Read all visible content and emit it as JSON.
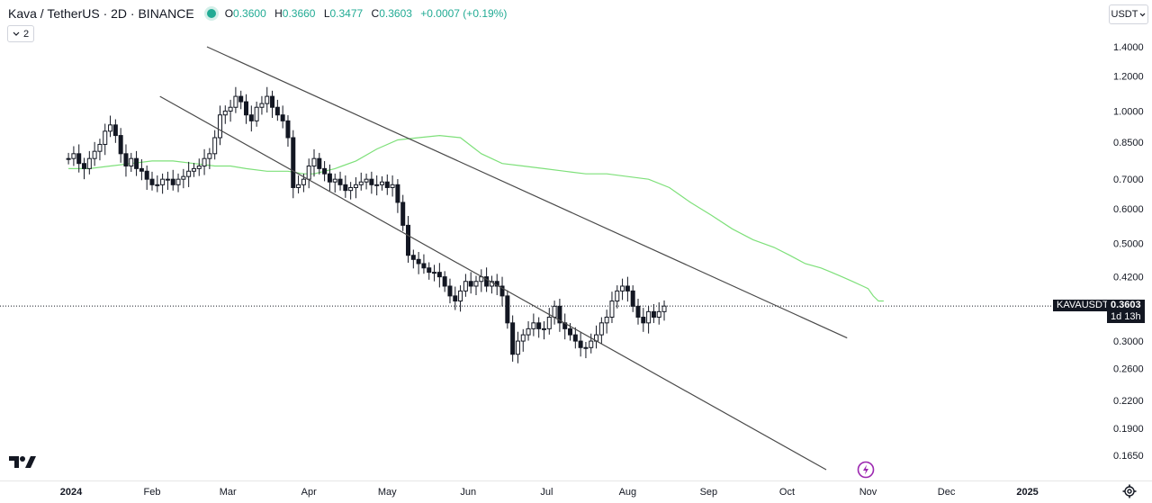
{
  "legend": {
    "title": "Kava / TetherUS · 2D · BINANCE",
    "open_label": "O",
    "open": "0.3600",
    "high_label": "H",
    "high": "0.3660",
    "low_label": "L",
    "low": "0.3477",
    "close_label": "C",
    "close": "0.3603",
    "change": "+0.0007 (+0.19%)"
  },
  "indicators_badge": "2",
  "currency_button": "USDT",
  "price_tag": {
    "symbol": "KAVAUSDT",
    "price": "0.3603",
    "countdown": "1d 13h"
  },
  "colors": {
    "up": "#131722",
    "down": "#131722",
    "ma": "#7ee07a",
    "trendline": "#4a4a4a",
    "accent": "#22ab94",
    "flash": "#9c27b0"
  },
  "chart_data": {
    "type": "candlestick",
    "scale": "log",
    "ylim": [
      0.155,
      1.47
    ],
    "y_ticks": [
      "1.4000",
      "1.2000",
      "1.0000",
      "0.8500",
      "0.7000",
      "0.6000",
      "0.5000",
      "0.4200",
      "0.3603",
      "0.3000",
      "0.2600",
      "0.2200",
      "0.1900",
      "0.1650"
    ],
    "x_ticks": [
      {
        "label": "2024",
        "date": "2024-01-01",
        "bold": true
      },
      {
        "label": "Feb",
        "date": "2024-02-01"
      },
      {
        "label": "Mar",
        "date": "2024-03-01"
      },
      {
        "label": "Apr",
        "date": "2024-04-01"
      },
      {
        "label": "May",
        "date": "2024-05-01"
      },
      {
        "label": "Jun",
        "date": "2024-06-01"
      },
      {
        "label": "Jul",
        "date": "2024-07-01"
      },
      {
        "label": "Aug",
        "date": "2024-08-01"
      },
      {
        "label": "Sep",
        "date": "2024-09-01"
      },
      {
        "label": "Oct",
        "date": "2024-10-01"
      },
      {
        "label": "Nov",
        "date": "2024-11-01"
      },
      {
        "label": "Dec",
        "date": "2024-12-01"
      },
      {
        "label": "2025",
        "date": "2025-01-01",
        "bold": true
      }
    ],
    "close_series": [
      0.78,
      0.8,
      0.76,
      0.74,
      0.78,
      0.81,
      0.84,
      0.9,
      0.93,
      0.88,
      0.8,
      0.75,
      0.78,
      0.74,
      0.73,
      0.7,
      0.68,
      0.68,
      0.7,
      0.7,
      0.68,
      0.7,
      0.71,
      0.73,
      0.74,
      0.75,
      0.78,
      0.8,
      0.87,
      0.98,
      1.0,
      1.02,
      1.08,
      1.05,
      0.98,
      0.95,
      1.02,
      1.04,
      1.08,
      1.02,
      0.98,
      0.95,
      0.87,
      0.67,
      0.68,
      0.7,
      0.75,
      0.78,
      0.74,
      0.72,
      0.69,
      0.7,
      0.68,
      0.66,
      0.67,
      0.68,
      0.69,
      0.7,
      0.68,
      0.68,
      0.69,
      0.67,
      0.68,
      0.62,
      0.55,
      0.47,
      0.46,
      0.45,
      0.44,
      0.43,
      0.43,
      0.42,
      0.4,
      0.38,
      0.37,
      0.39,
      0.41,
      0.4,
      0.41,
      0.42,
      0.4,
      0.41,
      0.4,
      0.38,
      0.33,
      0.28,
      0.3,
      0.31,
      0.32,
      0.33,
      0.32,
      0.32,
      0.34,
      0.36,
      0.33,
      0.32,
      0.31,
      0.3,
      0.29,
      0.29,
      0.3,
      0.31,
      0.33,
      0.34,
      0.37,
      0.39,
      0.4,
      0.39,
      0.36,
      0.34,
      0.33,
      0.35,
      0.34,
      0.35,
      0.3603
    ],
    "start_date": "2023-12-31",
    "interval_days": 2,
    "ma_series": [
      0.74,
      0.74,
      0.75,
      0.76,
      0.77,
      0.77,
      0.76,
      0.75,
      0.75,
      0.74,
      0.73,
      0.73,
      0.72,
      0.72,
      0.74,
      0.77,
      0.82,
      0.86,
      0.87,
      0.88,
      0.87,
      0.8,
      0.76,
      0.75,
      0.74,
      0.73,
      0.72,
      0.72,
      0.71,
      0.7,
      0.67,
      0.62,
      0.58,
      0.54,
      0.51,
      0.49,
      0.47,
      0.45,
      0.44,
      0.43,
      0.42,
      0.41,
      0.4,
      0.395,
      0.38,
      0.37,
      0.37
    ],
    "ma_dates": [
      "2023-12-31",
      "2024-01-08",
      "2024-01-16",
      "2024-01-24",
      "2024-02-01",
      "2024-02-09",
      "2024-02-17",
      "2024-02-25",
      "2024-03-02",
      "2024-03-08",
      "2024-03-16",
      "2024-03-24",
      "2024-03-30",
      "2024-04-03",
      "2024-04-11",
      "2024-04-19",
      "2024-04-27",
      "2024-05-05",
      "2024-05-13",
      "2024-05-21",
      "2024-05-29",
      "2024-06-06",
      "2024-06-14",
      "2024-06-22",
      "2024-06-30",
      "2024-07-08",
      "2024-07-16",
      "2024-07-24",
      "2024-08-01",
      "2024-08-09",
      "2024-08-17",
      "2024-08-25",
      "2024-09-02",
      "2024-09-10",
      "2024-09-18",
      "2024-09-26",
      "2024-10-02",
      "2024-10-08",
      "2024-10-14",
      "2024-10-18",
      "2024-10-22",
      "2024-10-26",
      "2024-10-30",
      "2024-11-01",
      "2024-11-03",
      "2024-11-05",
      "2024-11-07"
    ],
    "trendlines": [
      {
        "name": "upper-channel-line",
        "from": {
          "date": "2024-02-22",
          "price": 1.4
        },
        "to": {
          "date": "2024-10-24",
          "price": 0.305
        }
      },
      {
        "name": "lower-channel-line",
        "from": {
          "date": "2024-02-04",
          "price": 1.08
        },
        "to": {
          "date": "2024-10-16",
          "price": 0.153
        }
      }
    ],
    "last_price": 0.3603
  }
}
